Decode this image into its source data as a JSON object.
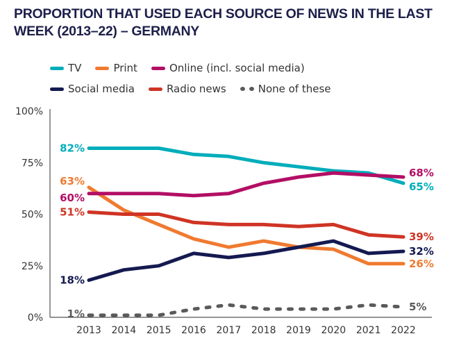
{
  "chart_data": {
    "type": "line",
    "title": "PROPORTION THAT USED EACH SOURCE OF  NEWS IN THE LAST WEEK (2013–22) – GERMANY",
    "xlabel": "",
    "ylabel": "",
    "x": [
      "2013",
      "2014",
      "2015",
      "2016",
      "2017",
      "2018",
      "2019",
      "2020",
      "2021",
      "2022"
    ],
    "ylim": [
      0,
      100
    ],
    "yticks": [
      "0%",
      "25%",
      "50%",
      "75%",
      "100%"
    ],
    "ytick_values": [
      0,
      25,
      50,
      75,
      100
    ],
    "grid": false,
    "legend_position": "top-left",
    "series": [
      {
        "name": "TV",
        "color": "#00adbb",
        "dashed": false,
        "values": [
          82,
          82,
          82,
          79,
          78,
          75,
          73,
          71,
          70,
          65
        ],
        "start_label": "82%",
        "end_label": "65%"
      },
      {
        "name": "Print",
        "color": "#f07a30",
        "dashed": false,
        "values": [
          63,
          52,
          45,
          38,
          34,
          37,
          34,
          33,
          26,
          26
        ],
        "start_label": "63%",
        "end_label": "26%"
      },
      {
        "name": "Online (incl. social media)",
        "color": "#b30e64",
        "dashed": false,
        "values": [
          60,
          60,
          60,
          59,
          60,
          65,
          68,
          70,
          69,
          68
        ],
        "start_label": "60%",
        "end_label": "68%"
      },
      {
        "name": "Social media",
        "color": "#141a50",
        "dashed": false,
        "values": [
          18,
          23,
          25,
          31,
          29,
          31,
          34,
          37,
          31,
          32
        ],
        "start_label": "18%",
        "end_label": "32%"
      },
      {
        "name": "Radio news",
        "color": "#cf3424",
        "dashed": false,
        "values": [
          51,
          50,
          50,
          46,
          45,
          45,
          44,
          45,
          40,
          39
        ],
        "start_label": "51%",
        "end_label": "39%"
      },
      {
        "name": "None of these",
        "color": "#5a5a5a",
        "dashed": true,
        "values": [
          1,
          1,
          1,
          4,
          6,
          4,
          4,
          4,
          6,
          5
        ],
        "start_label": "1%",
        "end_label": "5%"
      }
    ]
  },
  "legend": {
    "rows": [
      [
        {
          "label": "TV",
          "color": "#00adbb",
          "style": "line"
        },
        {
          "label": "Print",
          "color": "#f07a30",
          "style": "line"
        },
        {
          "label": "Online (incl. social media)",
          "color": "#b30e64",
          "style": "line"
        }
      ],
      [
        {
          "label": "Social media",
          "color": "#141a50",
          "style": "line"
        },
        {
          "label": "Radio news",
          "color": "#cf3424",
          "style": "line"
        },
        {
          "label": "None of these",
          "color": "#5a5a5a",
          "style": "dots"
        }
      ]
    ]
  }
}
